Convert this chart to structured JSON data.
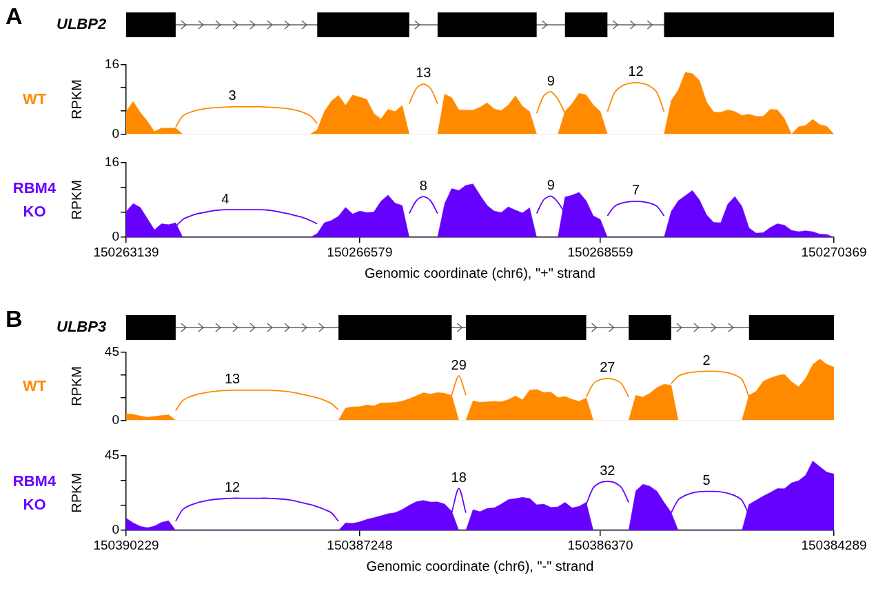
{
  "chart_data": [
    {
      "type": "area",
      "title": "A",
      "subtitle": "ULBP2",
      "ylabel": "RPKM",
      "ylim": [
        0,
        16
      ],
      "yticks": [
        0,
        {
          "value": 5.33,
          "label": null
        },
        {
          "value": 10.67,
          "label": null
        },
        16
      ],
      "tick_labels": "y",
      "categories": [
        null,
        null,
        null,
        null,
        null,
        null,
        null,
        null,
        null,
        null,
        null,
        null,
        null,
        null,
        null,
        null,
        null,
        null,
        null,
        null,
        null,
        null,
        null,
        null,
        null,
        null,
        null,
        null,
        null,
        null,
        null,
        null,
        null,
        null,
        null,
        null,
        null,
        null,
        null,
        null,
        null,
        null,
        null,
        null,
        null,
        null,
        null,
        null,
        null,
        null,
        null,
        null,
        null,
        null,
        null,
        null,
        null,
        null,
        null,
        null,
        null,
        null,
        null,
        null,
        null,
        null,
        null,
        null,
        null,
        null,
        null,
        null,
        null,
        null,
        null,
        null,
        null,
        null,
        null,
        null,
        null,
        null,
        null,
        null,
        null,
        null,
        null,
        null,
        null,
        null,
        null,
        null,
        null,
        null,
        null,
        null,
        null,
        null,
        null,
        null,
        null
      ],
      "series": [
        {
          "name": "WT",
          "type": "area",
          "color": "#ff8a00",
          "values": [
            5.2,
            7.5,
            5.0,
            3.0,
            0.6,
            1.4,
            1.4,
            1.4,
            0,
            0,
            0,
            0,
            0,
            0,
            0,
            0,
            0,
            0,
            0,
            0,
            0,
            0,
            0,
            0,
            0,
            0,
            0,
            1.0,
            5.2,
            7.6,
            8.9,
            6.6,
            9.0,
            8.5,
            8.0,
            4.7,
            3.5,
            5.7,
            5.2,
            6.6,
            0,
            0,
            0,
            0,
            0,
            9.2,
            8.4,
            5.6,
            5.5,
            5.5,
            6.2,
            7.2,
            5.8,
            5.4,
            6.7,
            8.8,
            6.4,
            5.2,
            0,
            0,
            0,
            0,
            5.2,
            7.0,
            9.4,
            9.0,
            6.7,
            5.2,
            0,
            0,
            0,
            0,
            0,
            0,
            0,
            0,
            0,
            7.7,
            10.1,
            14.2,
            13.9,
            12.3,
            7.4,
            5.1,
            5.0,
            5.6,
            5.2,
            4.3,
            4.6,
            4.1,
            4.1,
            5.7,
            5.6,
            3.6,
            0,
            1.7,
            2.0,
            3.4,
            2.2,
            1.8,
            0
          ]
        },
        {
          "type": "line",
          "color": "#ff8a00",
          "values": [
            null,
            null,
            null,
            null,
            null,
            null,
            null,
            1.6,
            4.2,
            5.0,
            5.5,
            5.8,
            6.0,
            6.1,
            6.2,
            6.3,
            6.3,
            6.3,
            6.3,
            6.3,
            6.2,
            6.1,
            6.0,
            5.8,
            5.5,
            5.0,
            4.2,
            2.5,
            null,
            null,
            null,
            null,
            null,
            null,
            null,
            null,
            null,
            null,
            null,
            null,
            7.0,
            10.5,
            11.5,
            10.5,
            7.0,
            null,
            null,
            null,
            null,
            null,
            null,
            null,
            null,
            null,
            null,
            null,
            null,
            null,
            4.8,
            8.8,
            9.7,
            8.0,
            4.8,
            null,
            null,
            null,
            null,
            null,
            5.2,
            9.5,
            11.0,
            11.6,
            11.8,
            11.6,
            11.0,
            9.5,
            5.2,
            null,
            null,
            null,
            null,
            null,
            null,
            null,
            null,
            null,
            null,
            null,
            null,
            null,
            null,
            null,
            null,
            null,
            null,
            null,
            null,
            null,
            null,
            null,
            null
          ]
        }
      ],
      "annotations": [
        "3",
        "13",
        "9",
        "12"
      ]
    },
    {
      "type": "area",
      "ylabel": "RPKM",
      "xlabel": "Genomic coordinate (chr6), \"+\" strand",
      "ylim": [
        0,
        16
      ],
      "yticks": [
        0,
        {
          "value": 5.33,
          "label": null
        },
        {
          "value": 10.67,
          "label": null
        },
        16
      ],
      "categories": [
        "150263139",
        null,
        null,
        null,
        null,
        null,
        null,
        null,
        null,
        null,
        null,
        null,
        null,
        null,
        null,
        null,
        null,
        null,
        null,
        null,
        null,
        null,
        null,
        null,
        null,
        null,
        null,
        null,
        null,
        null,
        null,
        null,
        null,
        "150266579",
        null,
        null,
        null,
        null,
        null,
        null,
        null,
        null,
        null,
        null,
        null,
        null,
        null,
        null,
        null,
        null,
        null,
        null,
        null,
        null,
        null,
        null,
        null,
        null,
        null,
        null,
        null,
        null,
        null,
        null,
        null,
        null,
        null,
        "150268559",
        null,
        null,
        null,
        null,
        null,
        null,
        null,
        null,
        null,
        null,
        null,
        null,
        null,
        null,
        null,
        null,
        null,
        null,
        null,
        null,
        null,
        null,
        null,
        null,
        null,
        null,
        null,
        null,
        null,
        null,
        null,
        null,
        "150270369"
      ],
      "series": [
        {
          "name": "RBM4 KO",
          "type": "area",
          "color": "#6600ff",
          "values": [
            5.5,
            7.2,
            6.4,
            4.0,
            1.6,
            2.9,
            2.7,
            3.1,
            0,
            0,
            0,
            0,
            0,
            0,
            0,
            0,
            0,
            0,
            0,
            0,
            0,
            0,
            0,
            0,
            0,
            0,
            0,
            0.8,
            3.1,
            3.6,
            4.5,
            6.4,
            5.0,
            5.6,
            5.3,
            5.4,
            7.7,
            9.0,
            7.3,
            6.8,
            0,
            0,
            0,
            0,
            0,
            7.2,
            10.4,
            10.0,
            11.1,
            11.4,
            9.0,
            6.8,
            5.6,
            5.3,
            6.5,
            5.8,
            5.2,
            6.3,
            0,
            0,
            0,
            0,
            8.6,
            9.0,
            9.6,
            7.8,
            4.6,
            3.8,
            0,
            0,
            0,
            0,
            0,
            0,
            0,
            0,
            0,
            5.5,
            7.8,
            8.9,
            10.0,
            8.0,
            4.8,
            3.2,
            3.1,
            7.1,
            8.7,
            6.6,
            2.0,
            0.9,
            1.0,
            2.1,
            2.9,
            2.6,
            1.5,
            1.2,
            1.4,
            1.2,
            0.7,
            0.6,
            0
          ]
        },
        {
          "type": "line",
          "color": "#6600ff",
          "values": [
            null,
            null,
            null,
            null,
            null,
            null,
            null,
            2.3,
            3.8,
            4.5,
            5.0,
            5.3,
            5.6,
            5.8,
            5.9,
            5.9,
            5.9,
            5.9,
            5.9,
            5.9,
            5.8,
            5.6,
            5.3,
            5.0,
            4.6,
            4.2,
            3.6,
            2.9,
            null,
            null,
            null,
            null,
            null,
            null,
            null,
            null,
            null,
            null,
            null,
            null,
            5.1,
            7.8,
            8.7,
            7.8,
            5.1,
            null,
            null,
            null,
            null,
            null,
            null,
            null,
            null,
            null,
            null,
            null,
            null,
            null,
            5.1,
            8.0,
            8.8,
            7.5,
            5.1,
            null,
            null,
            null,
            null,
            null,
            4.6,
            6.6,
            7.3,
            7.6,
            7.7,
            7.6,
            7.3,
            6.6,
            4.6,
            null,
            null,
            null,
            null,
            null,
            null,
            null,
            null,
            null,
            null,
            null,
            null,
            null,
            null,
            null,
            null,
            null,
            null,
            null,
            null,
            null,
            null,
            null,
            null
          ]
        }
      ],
      "annotations": [
        "4",
        "8",
        "9",
        "7"
      ]
    },
    {
      "type": "area",
      "title": "B",
      "subtitle": "ULBP3",
      "ylabel": "RPKM",
      "ylim": [
        0,
        45
      ],
      "yticks": [
        0,
        {
          "value": 15,
          "label": null
        },
        {
          "value": 30,
          "label": null
        },
        45
      ],
      "tick_labels": "y",
      "categories": [
        null,
        null,
        null,
        null,
        null,
        null,
        null,
        null,
        null,
        null,
        null,
        null,
        null,
        null,
        null,
        null,
        null,
        null,
        null,
        null,
        null,
        null,
        null,
        null,
        null,
        null,
        null,
        null,
        null,
        null,
        null,
        null,
        null,
        null,
        null,
        null,
        null,
        null,
        null,
        null,
        null,
        null,
        null,
        null,
        null,
        null,
        null,
        null,
        null,
        null,
        null,
        null,
        null,
        null,
        null,
        null,
        null,
        null,
        null,
        null,
        null,
        null,
        null,
        null,
        null,
        null,
        null,
        null,
        null,
        null,
        null,
        null,
        null,
        null,
        null,
        null,
        null,
        null,
        null,
        null,
        null,
        null,
        null,
        null,
        null,
        null,
        null,
        null,
        null,
        null,
        null,
        null,
        null,
        null,
        null,
        null,
        null,
        null,
        null,
        null,
        null
      ],
      "series": [
        {
          "name": "WT",
          "type": "area",
          "color": "#ff8a00",
          "values": [
            4.3,
            4.0,
            2.9,
            2.1,
            2.6,
            3.2,
            3.7,
            0,
            0,
            0,
            0,
            0,
            0,
            0,
            0,
            0,
            0,
            0,
            0,
            0,
            0,
            0,
            0,
            0,
            0,
            0,
            0,
            0,
            0,
            0,
            0,
            8.1,
            8.9,
            9.0,
            10.1,
            9.5,
            11.5,
            11.5,
            11.8,
            12.6,
            14.2,
            16.1,
            18.2,
            17.3,
            18.3,
            17.8,
            16.5,
            0,
            0,
            12.7,
            11.9,
            12.2,
            12.5,
            12.2,
            13.7,
            16.0,
            13.5,
            19.9,
            20.4,
            18.3,
            18.7,
            15.0,
            15.7,
            13.9,
            12.5,
            14.8,
            0,
            0,
            0,
            0,
            0,
            0,
            16.5,
            15.4,
            17.8,
            21.6,
            23.7,
            23.2,
            0,
            0,
            0,
            0,
            0,
            0,
            0,
            0,
            0,
            0,
            16.5,
            19.1,
            25.7,
            27.8,
            29.4,
            30.3,
            25.5,
            22.1,
            27.6,
            36.7,
            40.3,
            36.9,
            35.0
          ]
        },
        {
          "type": "line",
          "color": "#ff8a00",
          "values": [
            null,
            null,
            null,
            null,
            null,
            null,
            null,
            6.4,
            13.0,
            15.5,
            17.0,
            18.0,
            18.8,
            19.3,
            19.6,
            19.8,
            19.8,
            19.8,
            19.8,
            19.8,
            19.8,
            19.6,
            19.3,
            18.8,
            18.0,
            17.0,
            16.0,
            14.8,
            13.2,
            11.0,
            6.9,
            null,
            null,
            null,
            null,
            null,
            null,
            null,
            null,
            null,
            null,
            null,
            null,
            null,
            null,
            null,
            16.5,
            29.3,
            16.5,
            null,
            null,
            null,
            null,
            null,
            null,
            null,
            null,
            null,
            null,
            null,
            null,
            null,
            null,
            null,
            null,
            15.3,
            24.0,
            26.8,
            27.5,
            26.8,
            24.0,
            15.3,
            null,
            null,
            null,
            null,
            null,
            24.2,
            29.0,
            30.8,
            31.7,
            32.1,
            32.3,
            32.3,
            32.0,
            31.3,
            29.8,
            27.0,
            15.3,
            null,
            null,
            null,
            null,
            null,
            null,
            null,
            null,
            null,
            null,
            null,
            null
          ]
        }
      ],
      "annotations": [
        "13",
        "29",
        "27",
        "2"
      ]
    },
    {
      "type": "area",
      "ylabel": "RPKM",
      "xlabel": "Genomic coordinate (chr6), \"-\" strand",
      "ylim": [
        0,
        45
      ],
      "yticks": [
        0,
        {
          "value": 15,
          "label": null
        },
        {
          "value": 30,
          "label": null
        },
        45
      ],
      "categories": [
        "150390229",
        null,
        null,
        null,
        null,
        null,
        null,
        null,
        null,
        null,
        null,
        null,
        null,
        null,
        null,
        null,
        null,
        null,
        null,
        null,
        null,
        null,
        null,
        null,
        null,
        null,
        null,
        null,
        null,
        null,
        null,
        null,
        null,
        "150387248",
        null,
        null,
        null,
        null,
        null,
        null,
        null,
        null,
        null,
        null,
        null,
        null,
        null,
        null,
        null,
        null,
        null,
        null,
        null,
        null,
        null,
        null,
        null,
        null,
        null,
        null,
        null,
        null,
        null,
        null,
        null,
        null,
        null,
        "150386370",
        null,
        null,
        null,
        null,
        null,
        null,
        null,
        null,
        null,
        null,
        null,
        null,
        null,
        null,
        null,
        null,
        null,
        null,
        null,
        null,
        null,
        null,
        null,
        null,
        null,
        null,
        null,
        null,
        null,
        null,
        null,
        null,
        "150384289"
      ],
      "series": [
        {
          "name": "RBM4 KO",
          "type": "area",
          "color": "#6600ff",
          "values": [
            7.3,
            4.5,
            2.5,
            1.6,
            2.6,
            4.8,
            5.8,
            0,
            0,
            0,
            0,
            0,
            0,
            0,
            0,
            0,
            0,
            0,
            0,
            0,
            0,
            0,
            0,
            0,
            0,
            0,
            0,
            0,
            0,
            0,
            0,
            4.5,
            4.2,
            5.1,
            6.6,
            7.6,
            8.8,
            10.0,
            10.6,
            12.5,
            15.1,
            17.2,
            18.0,
            17.0,
            17.1,
            15.8,
            11.5,
            0,
            0,
            12.4,
            11.3,
            13.2,
            13.5,
            15.8,
            18.5,
            19.1,
            19.8,
            19.2,
            15.4,
            15.8,
            13.8,
            14.1,
            16.8,
            13.5,
            14.5,
            16.8,
            0,
            0,
            0,
            0,
            0,
            0,
            23.7,
            27.7,
            26.5,
            23.5,
            16.8,
            10.8,
            0,
            0,
            0,
            0,
            0,
            0,
            0,
            0,
            0,
            0,
            15.6,
            18.1,
            20.6,
            22.7,
            25.1,
            25.0,
            28.5,
            29.8,
            33.1,
            41.6,
            38.2,
            34.9,
            33.9
          ]
        },
        {
          "type": "line",
          "color": "#6600ff",
          "values": [
            null,
            null,
            null,
            null,
            null,
            null,
            null,
            5.5,
            12.5,
            15.0,
            16.5,
            17.5,
            18.3,
            18.8,
            19.1,
            19.3,
            19.3,
            19.3,
            19.3,
            19.3,
            19.3,
            19.1,
            18.8,
            18.3,
            17.5,
            16.5,
            15.5,
            14.2,
            12.6,
            10.5,
            5.5,
            null,
            null,
            null,
            null,
            null,
            null,
            null,
            null,
            null,
            null,
            null,
            null,
            null,
            null,
            null,
            10.6,
            25.1,
            10.6,
            null,
            null,
            null,
            null,
            null,
            null,
            null,
            null,
            null,
            null,
            null,
            null,
            null,
            null,
            null,
            null,
            15.6,
            25.5,
            28.7,
            29.4,
            28.7,
            25.5,
            16.8,
            null,
            null,
            null,
            null,
            null,
            10.6,
            18.3,
            21.0,
            22.5,
            23.2,
            23.4,
            23.4,
            23.1,
            22.3,
            20.8,
            18.0,
            9.3,
            null,
            null,
            null,
            null,
            null,
            null,
            null,
            null,
            null,
            null,
            null,
            null
          ]
        }
      ],
      "annotations": [
        "12",
        "18",
        "32",
        "5"
      ]
    }
  ]
}
